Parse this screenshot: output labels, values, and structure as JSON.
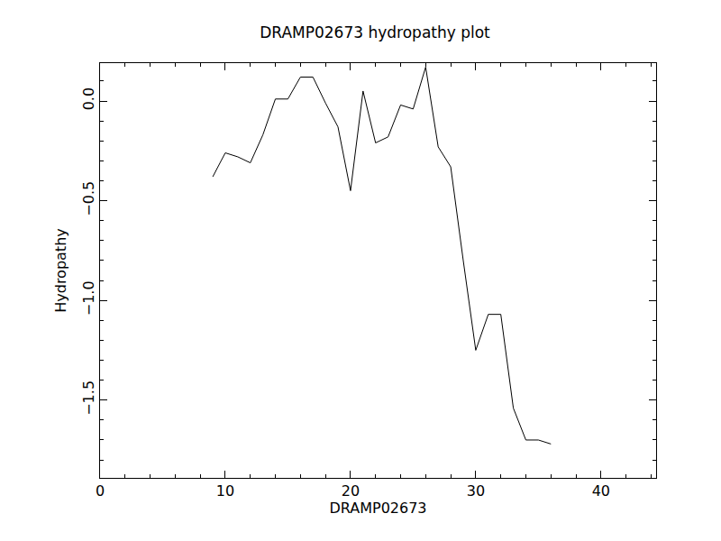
{
  "chart_data": {
    "type": "line",
    "title": "DRAMP02673 hydropathy plot",
    "x_label": "DRAMP02673",
    "y_label": "Hydropathy",
    "x": [
      9,
      10,
      11,
      12,
      13,
      14,
      15,
      16,
      17,
      18,
      19,
      20,
      21,
      22,
      23,
      24,
      25,
      26,
      27,
      28,
      29,
      30,
      31,
      32,
      33,
      34,
      35,
      36
    ],
    "values": [
      -0.38,
      -0.26,
      -0.28,
      -0.31,
      -0.17,
      0.01,
      0.01,
      0.12,
      0.12,
      -0.01,
      -0.13,
      -0.45,
      0.05,
      -0.21,
      -0.18,
      -0.02,
      -0.04,
      0.17,
      -0.23,
      -0.33,
      -0.8,
      -1.25,
      -1.07,
      -1.07,
      -1.54,
      -1.7,
      -1.7,
      -1.72
    ],
    "color": "#000000",
    "xlim": [
      0,
      44.4
    ],
    "xticks": [
      0,
      10,
      20,
      30,
      40
    ],
    "ylim": [
      -1.89,
      0.19
    ],
    "yticks": [
      {
        "value": -1.5,
        "label": "−1.5"
      },
      {
        "value": -1.0,
        "label": "−1.0"
      },
      {
        "value": -0.5,
        "label": "−0.5"
      },
      {
        "value": 0,
        "label": "0.0"
      }
    ],
    "grid": false
  }
}
